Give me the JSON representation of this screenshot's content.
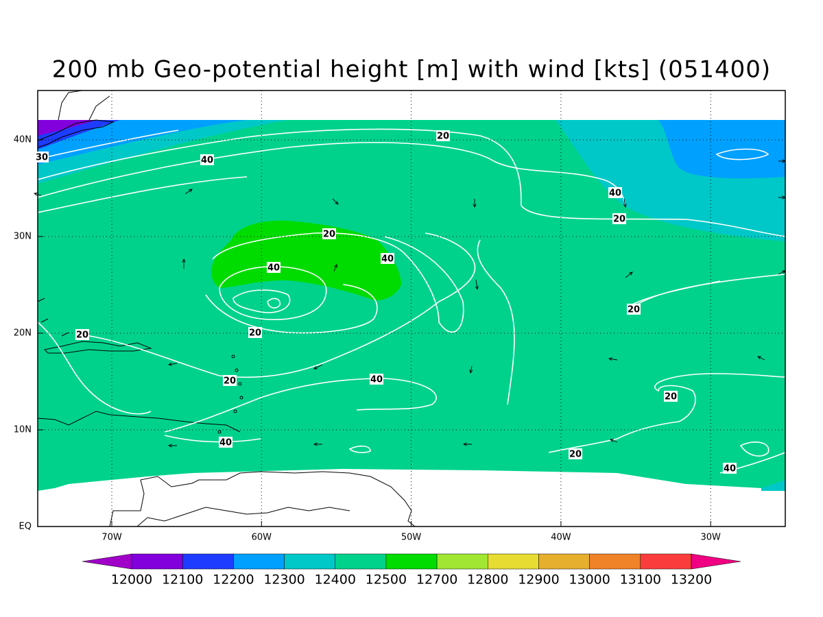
{
  "title": "200 mb Geo-potential height [m] with wind [kts] (051400)",
  "lat_labels": [
    "EQ",
    "10N",
    "20N",
    "30N",
    "40N"
  ],
  "lon_labels": [
    "70W",
    "60W",
    "50W",
    "40W",
    "30W"
  ],
  "contour_labels": [
    "20",
    "40",
    "30",
    "40",
    "20",
    "20",
    "40",
    "40",
    "20",
    "20",
    "20",
    "20",
    "40",
    "20",
    "40",
    "20",
    "40"
  ],
  "colorbar": {
    "labels": [
      "12000",
      "12100",
      "12200",
      "12300",
      "12400",
      "12500",
      "12700",
      "12800",
      "12900",
      "13000",
      "13100",
      "13200"
    ],
    "colors": [
      "#a000c8",
      "#8200dc",
      "#1e3cff",
      "#00a0ff",
      "#00c8c8",
      "#00d28c",
      "#00dc00",
      "#a0e632",
      "#e6dc32",
      "#e6af2d",
      "#f08228",
      "#fa3c3c",
      "#f00082"
    ]
  }
}
